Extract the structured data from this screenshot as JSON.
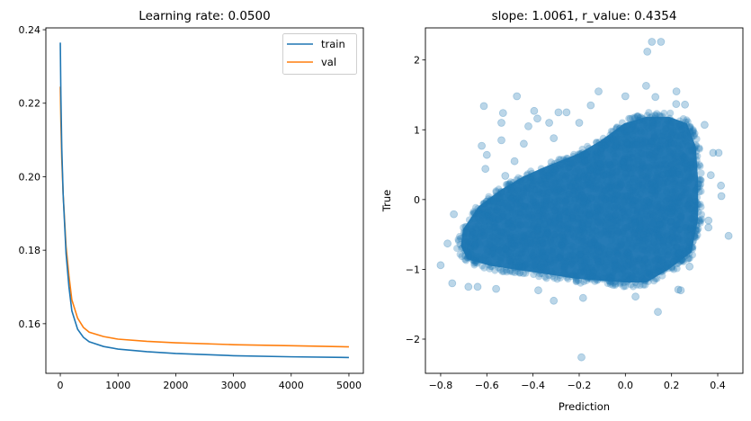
{
  "colors": {
    "train": "#1f77b4",
    "val": "#ff7f0e",
    "scatter": "#1f77b4"
  },
  "chart_data": [
    {
      "type": "line",
      "title": "Learning rate: 0.0500",
      "xlabel": "",
      "ylabel": "",
      "xlim": [
        -250,
        5250
      ],
      "ylim": [
        0.1465,
        0.2405
      ],
      "xticks": [
        0,
        1000,
        2000,
        3000,
        4000,
        5000
      ],
      "xtick_labels": [
        "0",
        "1000",
        "2000",
        "3000",
        "4000",
        "5000"
      ],
      "yticks": [
        0.16,
        0.18,
        0.2,
        0.22,
        0.24
      ],
      "ytick_labels": [
        "0.16",
        "0.18",
        "0.20",
        "0.22",
        "0.24"
      ],
      "grid": false,
      "legend": "top-right",
      "series": [
        {
          "name": "train",
          "x": [
            0,
            10,
            25,
            50,
            100,
            150,
            200,
            300,
            400,
            500,
            750,
            1000,
            1500,
            2000,
            3000,
            4000,
            5000
          ],
          "y": [
            0.2365,
            0.222,
            0.208,
            0.195,
            0.179,
            0.17,
            0.1635,
            0.1585,
            0.1563,
            0.1551,
            0.1538,
            0.1531,
            0.1524,
            0.1519,
            0.1513,
            0.151,
            0.1508
          ]
        },
        {
          "name": "val",
          "x": [
            0,
            10,
            25,
            50,
            100,
            150,
            200,
            300,
            400,
            500,
            750,
            1000,
            1500,
            2000,
            3000,
            4000,
            5000
          ],
          "y": [
            0.2245,
            0.215,
            0.205,
            0.195,
            0.181,
            0.173,
            0.1665,
            0.1615,
            0.159,
            0.1577,
            0.1565,
            0.1558,
            0.1552,
            0.1548,
            0.1543,
            0.154,
            0.1537
          ]
        }
      ]
    },
    {
      "type": "scatter",
      "title": "slope: 1.0061, r_value: 0.4354",
      "xlabel": "Prediction",
      "ylabel": "True",
      "xlim": [
        -0.866,
        0.509
      ],
      "ylim": [
        -2.49,
        2.46
      ],
      "xticks": [
        -0.8,
        -0.6,
        -0.4,
        -0.2,
        0.0,
        0.2,
        0.4
      ],
      "xtick_labels": [
        "−0.8",
        "−0.6",
        "−0.4",
        "−0.2",
        "0.0",
        "0.2",
        "0.4"
      ],
      "yticks": [
        -2,
        -1,
        0,
        1,
        2
      ],
      "ytick_labels": [
        "−2",
        "−1",
        "0",
        "1",
        "2"
      ],
      "grid": false,
      "alpha": 0.3,
      "slope": 1.0061,
      "r_value": 0.4354,
      "points": [
        [
          0.115,
          2.26
        ],
        [
          0.154,
          2.26
        ],
        [
          0.095,
          2.12
        ],
        [
          -0.19,
          -2.26
        ],
        [
          0.141,
          -1.61
        ],
        [
          -0.31,
          -1.45
        ],
        [
          -0.8,
          -0.94
        ],
        [
          0.447,
          -0.52
        ],
        [
          0.416,
          0.05
        ],
        [
          0.404,
          0.67
        ],
        [
          -0.613,
          1.34
        ],
        [
          -0.47,
          1.48
        ],
        [
          0.09,
          1.63
        ],
        [
          0.221,
          1.55
        ],
        [
          -0.116,
          1.55
        ],
        [
          -0.743,
          -0.21
        ],
        [
          -0.77,
          -0.63
        ],
        [
          -0.75,
          -1.2
        ],
        [
          -0.53,
          1.24
        ],
        [
          -0.395,
          1.27
        ],
        [
          -0.29,
          1.25
        ],
        [
          -0.255,
          1.25
        ],
        [
          -0.537,
          1.1
        ],
        [
          -0.381,
          1.16
        ],
        [
          -0.622,
          0.77
        ],
        [
          -0.6,
          0.64
        ],
        [
          -0.606,
          0.44
        ],
        [
          -0.537,
          0.85
        ],
        [
          0.414,
          0.2
        ],
        [
          0.38,
          0.67
        ],
        [
          0.343,
          1.07
        ],
        [
          0.258,
          1.36
        ],
        [
          0.229,
          -1.29
        ],
        [
          0.278,
          -0.96
        ],
        [
          -0.377,
          -1.3
        ],
        [
          -0.56,
          -1.28
        ],
        [
          -0.183,
          -1.41
        ],
        [
          0.044,
          -1.39
        ],
        [
          -0.42,
          1.05
        ],
        [
          -0.33,
          1.1
        ],
        [
          -0.31,
          0.88
        ],
        [
          -0.44,
          0.8
        ],
        [
          -0.48,
          0.55
        ],
        [
          -0.52,
          0.34
        ],
        [
          -0.68,
          -1.25
        ],
        [
          -0.64,
          -1.25
        ],
        [
          0.24,
          -1.3
        ],
        [
          0.36,
          -0.4
        ],
        [
          0.37,
          0.35
        ],
        [
          0.36,
          -0.3
        ],
        [
          -0.2,
          1.1
        ],
        [
          -0.15,
          1.35
        ],
        [
          0.0,
          1.48
        ],
        [
          0.13,
          1.47
        ],
        [
          0.22,
          1.37
        ]
      ]
    }
  ]
}
